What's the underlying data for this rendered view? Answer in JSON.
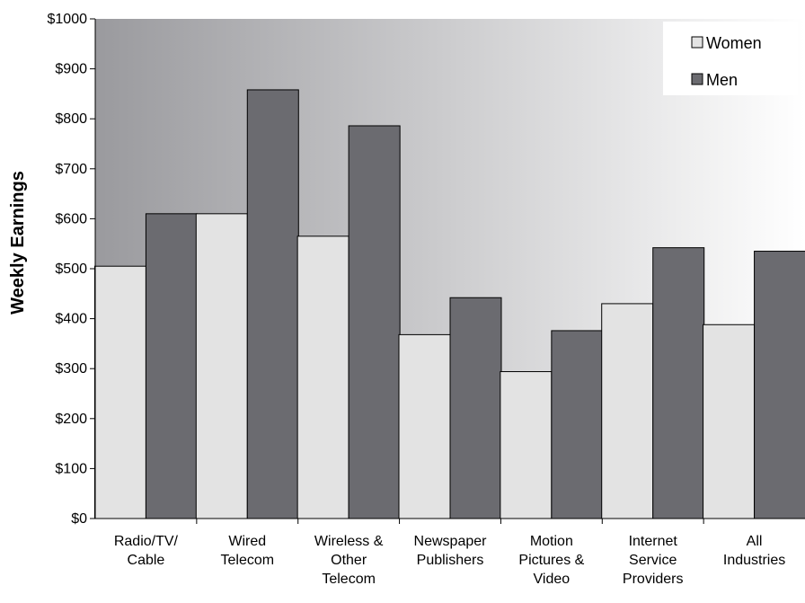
{
  "chart_data": {
    "type": "bar",
    "title": "",
    "xlabel": "",
    "ylabel": "Weekly Earnings",
    "ylim": [
      0,
      1000
    ],
    "y_ticks": [
      "$0",
      "$100",
      "$200",
      "$300",
      "$400",
      "$500",
      "$600",
      "$700",
      "$800",
      "$900",
      "$1000"
    ],
    "categories": [
      [
        "Radio/TV/",
        "Cable"
      ],
      [
        "Wired",
        "Telecom"
      ],
      [
        "Wireless &",
        "Other",
        "Telecom"
      ],
      [
        "Newspaper",
        "Publishers"
      ],
      [
        "Motion",
        "Pictures &",
        "Video"
      ],
      [
        "Internet",
        "Service",
        "Providers"
      ],
      [
        "All",
        "Industries"
      ]
    ],
    "series": [
      {
        "name": "Women",
        "color": "#e3e3e3",
        "values": [
          505,
          610,
          565,
          368,
          294,
          430,
          388
        ]
      },
      {
        "name": "Men",
        "color": "#6b6b70",
        "values": [
          610,
          858,
          786,
          442,
          376,
          542,
          535
        ]
      }
    ],
    "legend": {
      "position": "top-right"
    },
    "grid": false,
    "background": {
      "gradient_from": "#9a9a9e",
      "gradient_to": "#ffffff"
    }
  }
}
